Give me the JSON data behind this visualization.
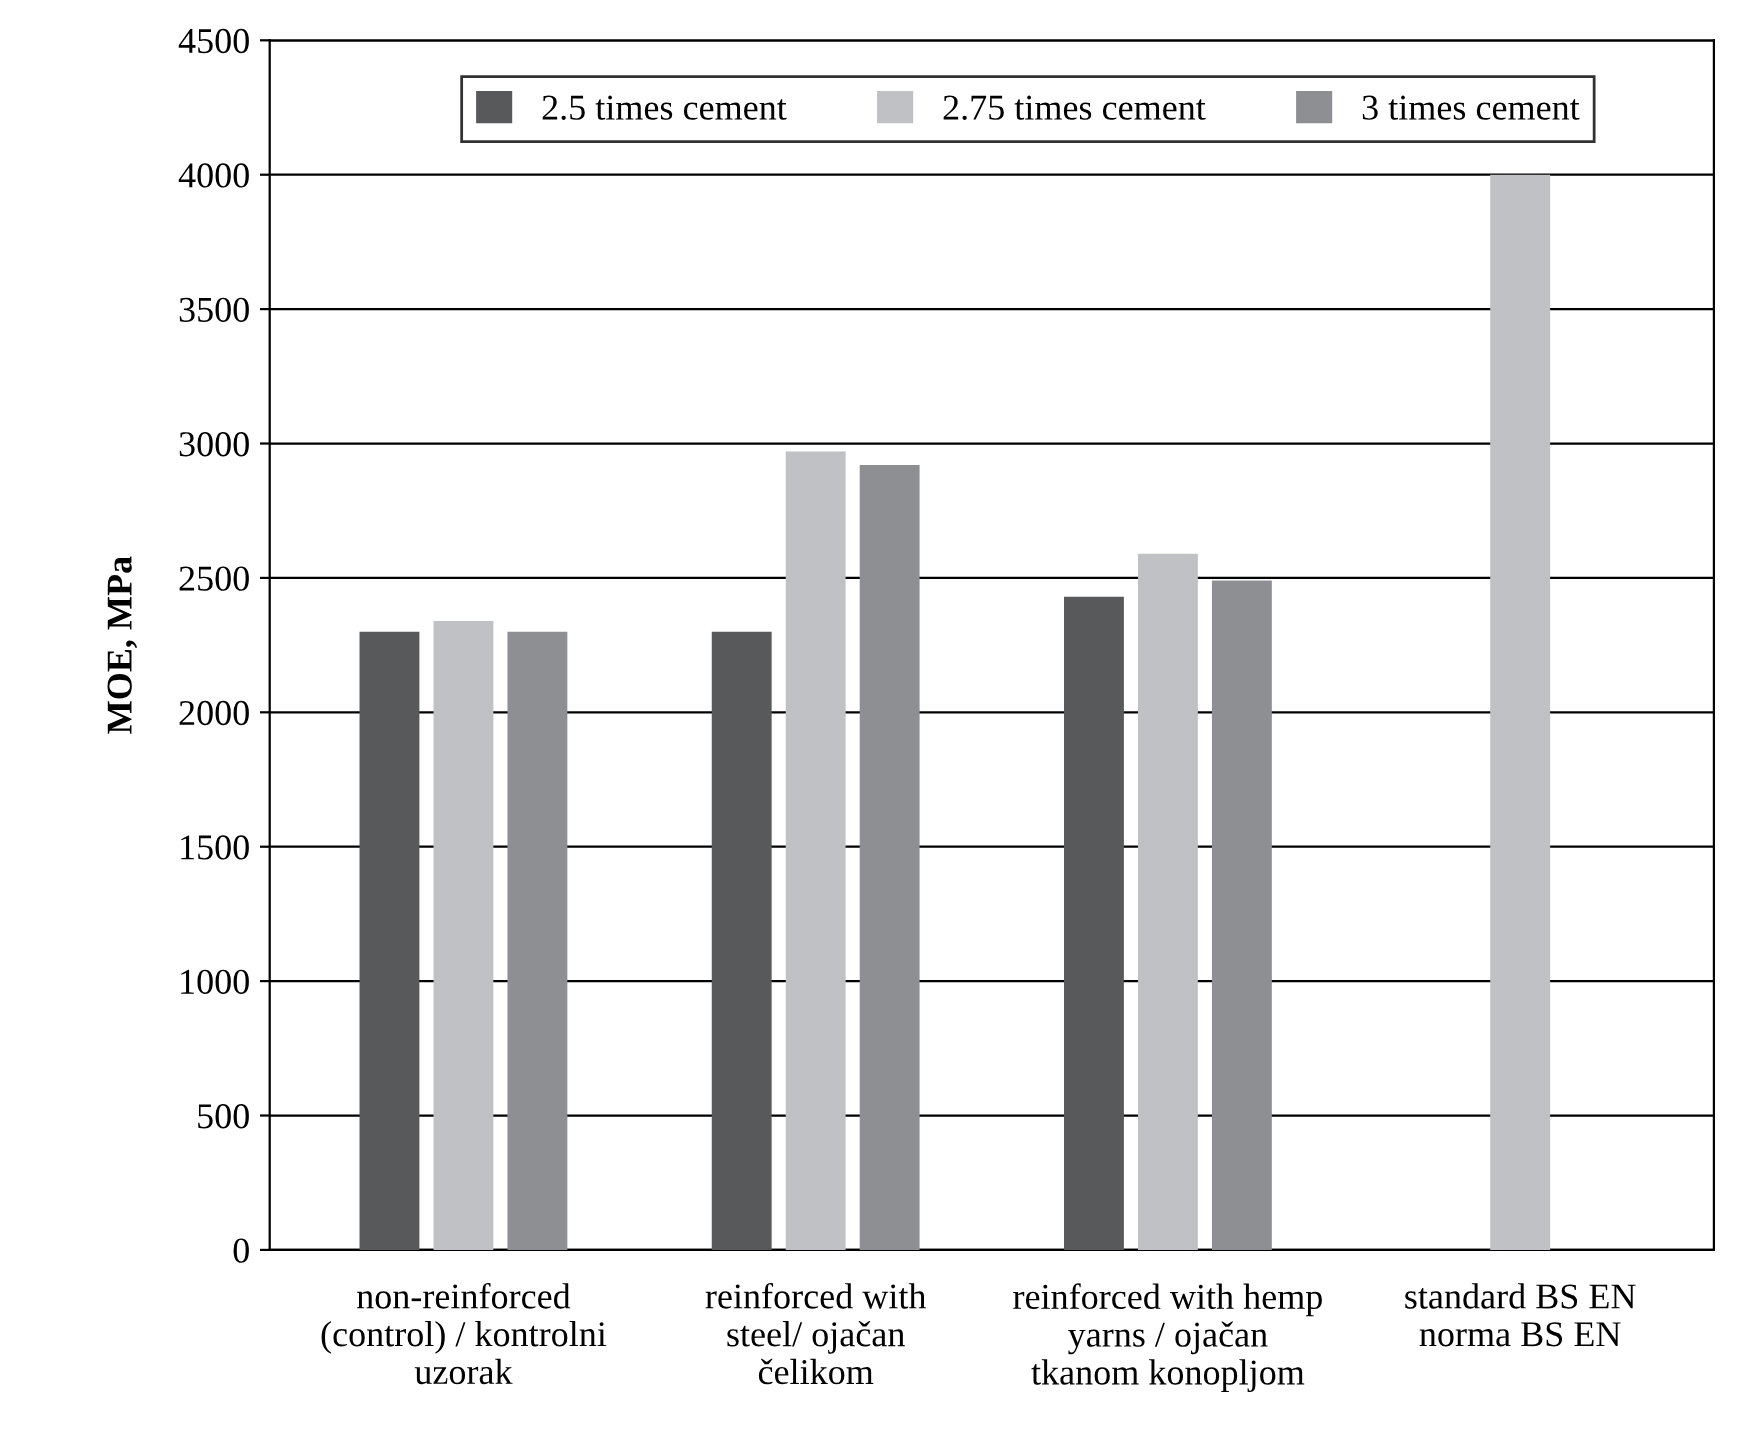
{
  "chart_data": {
    "type": "bar",
    "ylabel": "MOE, MPa",
    "categories": [
      "non-reinforced\n(control) / kontrolni\nuzorak",
      "reinforced with\nsteel/ ojačan\nčelikom",
      "reinforced with hemp\nyarns / ojačan\ntkanom konopljom",
      "standard BS EN\nnorma BS EN"
    ],
    "series": [
      {
        "name": "2.5 times cement",
        "color": "#58595b",
        "values": [
          2300,
          2300,
          2430,
          null
        ]
      },
      {
        "name": "2.75 times cement",
        "color": "#c0c1c4",
        "values": [
          2340,
          2970,
          2590,
          4000
        ]
      },
      {
        "name": "3 times cement",
        "color": "#8e8f92",
        "values": [
          2300,
          2920,
          2490,
          null
        ]
      }
    ],
    "ylim": [
      0,
      4500
    ],
    "yticks": [
      0,
      500,
      1000,
      1500,
      2000,
      2500,
      3000,
      3500,
      4000,
      4500
    ],
    "grid": "y",
    "legend": "top"
  }
}
